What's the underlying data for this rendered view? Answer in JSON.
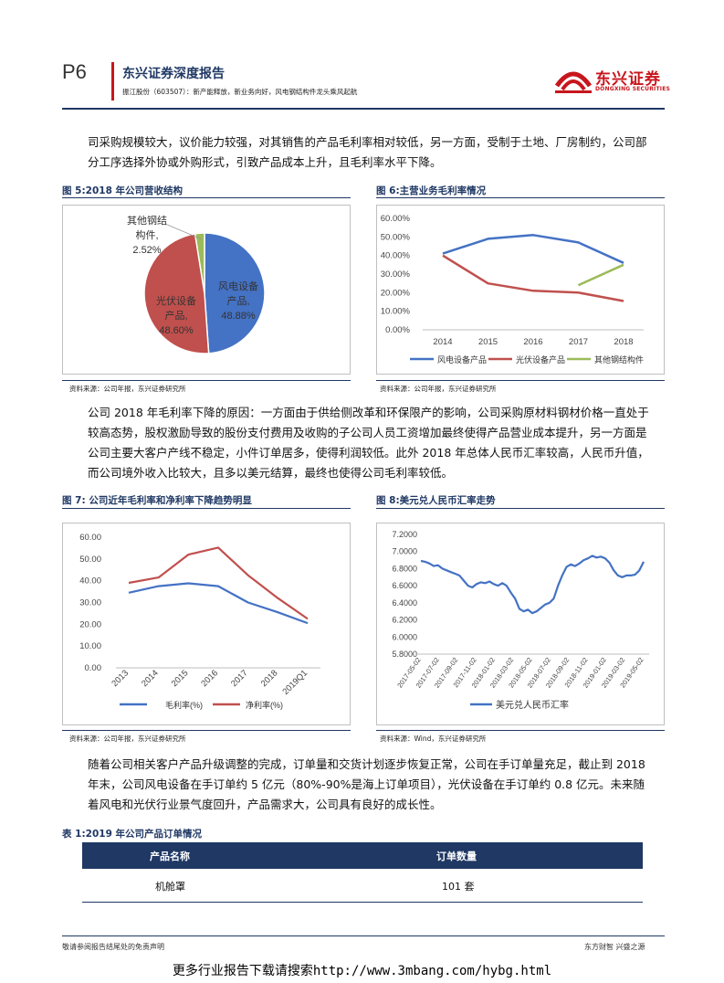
{
  "header": {
    "page_number": "P6",
    "report_type": "东兴证券深度报告",
    "subtitle": "振江股份（603507）：新产能释放，新业务向好，风电钢结构件龙头乘风起航",
    "logo_cn": "东兴证券",
    "logo_en": "DONGXING SECURITIES"
  },
  "paragraphs": {
    "p1": "司采购规模较大，议价能力较强，对其销售的产品毛利率相对较低，另一方面，受制于土地、厂房制约，公司部分工序选择外协或外购形式，引致产品成本上升，且毛利率水平下降。",
    "p2": "公司 2018 年毛利率下降的原因：一方面由于供给侧改革和环保限产的影响，公司采购原材料钢材价格一直处于较高态势，股权激励导致的股份支付费用及收购的子公司人员工资增加最终使得产品营业成本提升，另一方面是公司主要大客户产线不稳定，小件订单居多，使得利润较低。此外 2018 年总体人民币汇率较高，人民币升值，而公司境外收入比较大，且多以美元结算，最终也使得公司毛利率较低。",
    "p3": "随着公司相关客户产品升级调整的完成，订单量和交货计划逐步恢复正常，公司在手订单量充足，截止到 2018 年末，公司风电设备在手订单约 5 亿元（80%-90%是海上订单项目），光伏设备在手订单约 0.8 亿元。未来随着风电和光伏行业景气度回升，产品需求大，公司具有良好的成长性。"
  },
  "figures": {
    "fig5": {
      "title": "图 5:2018 年公司营收结构",
      "source": "资料来源：公司年报，东兴证券研究所"
    },
    "fig6": {
      "title": "图 6:主营业务毛利率情况",
      "source": "资料来源：公司年报，东兴证券研究所"
    },
    "fig7": {
      "title": "图 7: 公司近年毛利率和净利率下降趋势明显",
      "source": "资料来源：公司年报，东兴证券研究所"
    },
    "fig8": {
      "title": "图 8:美元兑人民币汇率走势",
      "source": "资料来源：Wind，东兴证券研究所"
    }
  },
  "chart_data": [
    {
      "id": "fig5",
      "type": "pie",
      "slices": [
        {
          "name": "风电设备产品",
          "label_line1": "风电设备",
          "label_line2": "产品,",
          "value": 48.88,
          "value_label": "48.88%",
          "color": "#4472c4"
        },
        {
          "name": "光伏设备产品",
          "label_line1": "光伏设备",
          "label_line2": "产品,",
          "value": 48.6,
          "value_label": "48.60%",
          "color": "#c0504d"
        },
        {
          "name": "其他钢结构件",
          "label_line1": "其他钢结",
          "label_line2": "构件,",
          "value": 2.52,
          "value_label": "2.52%",
          "color": "#9bbb59"
        }
      ]
    },
    {
      "id": "fig6",
      "type": "line",
      "categories": [
        "2014",
        "2015",
        "2016",
        "2017",
        "2018"
      ],
      "yticks": [
        "0.00%",
        "10.00%",
        "20.00%",
        "30.00%",
        "40.00%",
        "50.00%",
        "60.00%"
      ],
      "ylim": [
        0,
        60
      ],
      "series": [
        {
          "name": "风电设备产品",
          "color": "#4472c4",
          "values": [
            41,
            49,
            51,
            47,
            36
          ]
        },
        {
          "name": "光伏设备产品",
          "color": "#c0504d",
          "values": [
            40,
            25,
            21,
            20,
            15.5
          ]
        },
        {
          "name": "其他钢结构件",
          "color": "#9bbb59",
          "values": [
            null,
            null,
            null,
            24,
            35
          ]
        }
      ]
    },
    {
      "id": "fig7",
      "type": "line",
      "categories": [
        "2013",
        "2014",
        "2015",
        "2016",
        "2017",
        "2018",
        "2019Q1"
      ],
      "yticks": [
        "0.00",
        "10.00",
        "20.00",
        "30.00",
        "40.00",
        "50.00",
        "60.00"
      ],
      "ylim": [
        0,
        60
      ],
      "series": [
        {
          "name": "毛利率(%)",
          "color": "#4472c4",
          "values": [
            34.5,
            37.5,
            38.8,
            37.5,
            30,
            25.5,
            20.5
          ]
        },
        {
          "name": "净利率(%)",
          "color": "#c0504d",
          "values": [
            39,
            41.5,
            52,
            55.2,
            42.5,
            32,
            22.5
          ]
        }
      ]
    },
    {
      "id": "fig8",
      "type": "line",
      "xticks": [
        "2017-05-02",
        "2017-07-02",
        "2017-09-02",
        "2017-11-02",
        "2018-01-02",
        "2018-03-02",
        "2018-05-02",
        "2018-07-02",
        "2018-09-02",
        "2018-11-02",
        "2019-01-02",
        "2019-03-02",
        "2019-05-02"
      ],
      "yticks": [
        "5.8000",
        "6.0000",
        "6.2000",
        "6.4000",
        "6.6000",
        "6.8000",
        "7.0000",
        "7.2000"
      ],
      "ylim": [
        5.8,
        7.2
      ],
      "series": [
        {
          "name": "美元兑人民币汇率",
          "color": "#4472c4",
          "values": [
            6.89,
            6.88,
            6.86,
            6.83,
            6.84,
            6.8,
            6.78,
            6.76,
            6.74,
            6.72,
            6.66,
            6.6,
            6.58,
            6.62,
            6.64,
            6.63,
            6.65,
            6.62,
            6.6,
            6.63,
            6.6,
            6.52,
            6.45,
            6.33,
            6.3,
            6.32,
            6.28,
            6.3,
            6.34,
            6.38,
            6.4,
            6.45,
            6.6,
            6.72,
            6.82,
            6.85,
            6.83,
            6.86,
            6.9,
            6.92,
            6.95,
            6.93,
            6.94,
            6.92,
            6.87,
            6.78,
            6.72,
            6.7,
            6.72,
            6.72,
            6.73,
            6.78,
            6.88
          ]
        }
      ]
    }
  ],
  "table": {
    "title": "表 1:2019 年公司产品订单情况",
    "headers": [
      "产品名称",
      "订单数量"
    ],
    "rows": [
      [
        "机舱罩",
        "101 套"
      ]
    ]
  },
  "footer": {
    "left": "敬请参阅报告结尾处的免责声明",
    "right": "东方财智 兴盛之源",
    "banner_text": "更多行业报告下载请搜索",
    "banner_url": "http://www.3mbang.com/hybg.html"
  }
}
